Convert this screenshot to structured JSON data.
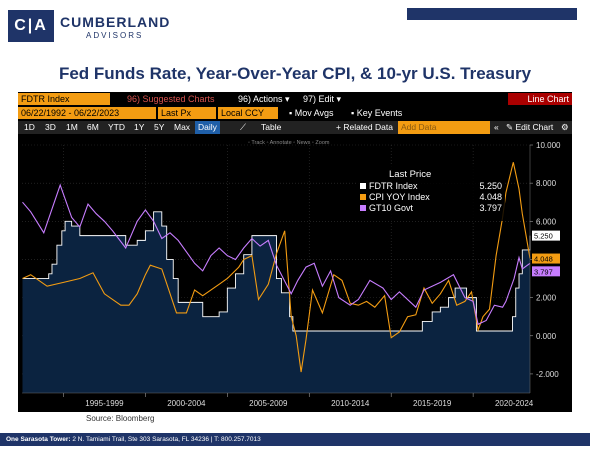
{
  "header": {
    "logo_letters": "C|A",
    "brand": "CUMBERLAND",
    "brand_sub": "ADVISORS",
    "title": "Fed Funds Rate, Year-Over-Year CPI, & 10-yr U.S. Treasury"
  },
  "terminal": {
    "ticker": "FDTR Index",
    "suggested": "96) Suggested Charts",
    "actions": "96) Actions ▾",
    "edit": "97) Edit ▾",
    "chart_type": "Line Chart",
    "date_range": "06/22/1992 - 06/22/2023",
    "last_px": "Last Px",
    "currency": "Local CCY",
    "mov_avgs": "Mov Avgs",
    "key_events": "Key Events",
    "periods": [
      "1D",
      "3D",
      "1M",
      "6M",
      "YTD",
      "1Y",
      "5Y",
      "Max"
    ],
    "daily": "Daily",
    "table": "Table",
    "related": "+ Related Data",
    "add_data": "Add Data",
    "edit_chart": "Edit Chart",
    "tools": "◦ Track  ◦ Annotate  ◦ News  ◦ Zoom"
  },
  "source": "Source: Bloomberg",
  "footer": {
    "address_bold": "One Sarasota Tower:",
    "address": "2 N. Tamiami Trail, Ste 303  Sarasota, FL 34236   |   T: 800.257.7013"
  },
  "colors": {
    "fdtr": "#ffffff",
    "cpi": "#f39c12",
    "gt10": "#c77dff",
    "area": "#0b2340",
    "brand": "#1f3468"
  },
  "chart_data": {
    "type": "line",
    "legend_title": "Last Price",
    "legend_placement": "top-center",
    "ylim": [
      -3,
      10
    ],
    "y_ticks": [
      10,
      8,
      6,
      4,
      2,
      0,
      -2
    ],
    "y_tick_labels": [
      "10.000",
      "8.000",
      "6.000",
      "4.000",
      "2.000",
      "0.000",
      "-2.000"
    ],
    "x_labels": [
      "1995-1999",
      "2000-2004",
      "2005-2009",
      "2010-2014",
      "2015-2019",
      "2020-2024"
    ],
    "xlim": [
      1992.47,
      2023.47
    ],
    "series": [
      {
        "name": "FDTR Index",
        "last": "5.250",
        "x": [
          1992.5,
          1994.0,
          1994.1,
          1994.3,
          1994.6,
          1994.9,
          1995.1,
          1995.5,
          1996.0,
          1998.8,
          1999.0,
          1999.5,
          2000.0,
          2000.5,
          2001.0,
          2001.3,
          2001.7,
          2002.0,
          2003.5,
          2004.5,
          2005.0,
          2005.5,
          2006.0,
          2006.5,
          2007.6,
          2008.0,
          2008.3,
          2008.8,
          2009.0,
          2015.9,
          2016.9,
          2017.5,
          2018.0,
          2018.5,
          2018.9,
          2019.6,
          2020.2,
          2022.2,
          2022.4,
          2022.6,
          2022.8,
          2023.0,
          2023.47
        ],
        "y": [
          3.0,
          3.0,
          3.25,
          3.75,
          4.75,
          5.5,
          6.0,
          5.75,
          5.25,
          4.75,
          4.75,
          5.0,
          5.5,
          6.5,
          5.75,
          4.0,
          3.0,
          1.75,
          1.0,
          1.25,
          2.5,
          3.25,
          4.25,
          5.25,
          5.25,
          3.0,
          2.25,
          1.0,
          0.25,
          0.25,
          0.75,
          1.25,
          1.5,
          2.0,
          2.5,
          2.0,
          0.25,
          0.25,
          1.0,
          2.5,
          3.25,
          4.5,
          5.25
        ]
      },
      {
        "name": "CPI YOY Index",
        "last": "4.048",
        "x": [
          1992.5,
          1993.0,
          1994.0,
          1995.0,
          1996.0,
          1996.8,
          1997.5,
          1998.5,
          1999.0,
          1999.5,
          2000.0,
          2000.3,
          2001.0,
          2001.9,
          2002.5,
          2003.0,
          2003.5,
          2004.5,
          2005.0,
          2005.7,
          2006.0,
          2006.5,
          2006.9,
          2007.5,
          2008.0,
          2008.5,
          2008.9,
          2009.2,
          2009.5,
          2009.8,
          2010.2,
          2010.8,
          2011.5,
          2012.0,
          2012.5,
          2013.0,
          2013.5,
          2014.0,
          2014.6,
          2015.0,
          2015.5,
          2016.0,
          2016.5,
          2017.0,
          2017.5,
          2018.0,
          2018.5,
          2019.0,
          2019.5,
          2019.9,
          2020.3,
          2020.6,
          2021.0,
          2021.4,
          2021.8,
          2022.0,
          2022.45,
          2022.8,
          2023.0,
          2023.47
        ],
        "y": [
          3.0,
          3.2,
          2.6,
          2.8,
          3.0,
          3.3,
          2.2,
          1.6,
          1.6,
          2.2,
          3.2,
          3.7,
          3.5,
          1.2,
          1.2,
          2.4,
          2.1,
          2.7,
          3.0,
          3.6,
          4.0,
          4.2,
          1.9,
          2.7,
          4.3,
          5.5,
          1.0,
          0.0,
          -1.9,
          -0.2,
          2.4,
          1.2,
          3.2,
          2.9,
          1.7,
          1.6,
          1.8,
          1.5,
          2.1,
          -0.1,
          0.2,
          1.0,
          1.1,
          2.5,
          1.7,
          2.2,
          2.9,
          1.6,
          1.8,
          2.3,
          0.3,
          1.0,
          1.4,
          4.2,
          6.2,
          7.5,
          9.1,
          7.7,
          6.4,
          4.048
        ]
      },
      {
        "name": "GT10 Govt",
        "last": "3.797",
        "x": [
          1992.5,
          1993.0,
          1993.8,
          1994.8,
          1995.5,
          1996.0,
          1996.5,
          1997.0,
          1997.5,
          1998.0,
          1998.8,
          1999.5,
          2000.0,
          2000.5,
          2001.0,
          2001.5,
          2002.0,
          2002.5,
          2003.0,
          2003.5,
          2004.0,
          2004.5,
          2005.0,
          2005.5,
          2006.0,
          2006.5,
          2007.0,
          2007.5,
          2008.0,
          2008.9,
          2009.3,
          2009.8,
          2010.3,
          2010.8,
          2011.3,
          2011.8,
          2012.5,
          2013.0,
          2013.7,
          2014.5,
          2015.0,
          2015.5,
          2016.5,
          2017.0,
          2018.0,
          2018.8,
          2019.5,
          2020.0,
          2020.3,
          2020.8,
          2021.3,
          2021.8,
          2022.0,
          2022.5,
          2022.8,
          2023.0,
          2023.47
        ],
        "y": [
          7.0,
          6.5,
          5.4,
          7.9,
          6.2,
          5.7,
          6.9,
          6.4,
          6.0,
          5.5,
          4.6,
          6.0,
          6.6,
          6.0,
          5.1,
          5.4,
          5.0,
          4.4,
          3.8,
          3.4,
          4.2,
          4.6,
          4.2,
          4.0,
          4.6,
          5.1,
          4.7,
          5.0,
          3.7,
          2.2,
          2.9,
          3.6,
          3.8,
          2.6,
          3.4,
          2.0,
          1.6,
          1.9,
          2.9,
          2.5,
          1.9,
          2.3,
          1.5,
          2.4,
          2.8,
          3.2,
          2.0,
          1.8,
          0.6,
          0.8,
          1.6,
          1.5,
          1.8,
          3.0,
          4.1,
          3.5,
          3.797
        ]
      }
    ]
  }
}
